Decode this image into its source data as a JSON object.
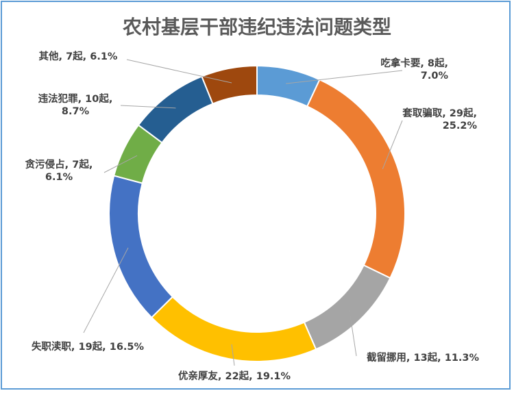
{
  "chart_data": {
    "type": "pie",
    "style": "doughnut",
    "title": "农村基层干部违纪违法问题类型",
    "unit": "起",
    "categories": [
      "吃拿卡要",
      "套取骗取",
      "截留挪用",
      "优亲厚友",
      "失职渎职",
      "贪污侵占",
      "违法犯罪",
      "其他"
    ],
    "values": [
      8,
      29,
      13,
      22,
      19,
      7,
      10,
      7
    ],
    "percents": [
      "7.0%",
      "25.2%",
      "11.3%",
      "19.1%",
      "16.5%",
      "6.1%",
      "8.7%",
      "6.1%"
    ],
    "labels": [
      [
        "吃拿卡要, 8起,",
        "7.0%"
      ],
      [
        "套取骗取, 29起,",
        "25.2%"
      ],
      [
        "截留挪用, 13起, 11.3%"
      ],
      [
        "优亲厚友, 22起, 19.1%"
      ],
      [
        "失职渎职, 19起, 16.5%"
      ],
      [
        "贪污侵占, 7起,",
        "6.1%"
      ],
      [
        "违法犯罪, 10起,",
        "8.7%"
      ],
      [
        "其他, 7起, 6.1%"
      ]
    ],
    "colors": [
      "#5b9bd5",
      "#ed7d31",
      "#a5a5a5",
      "#ffc000",
      "#4472c4",
      "#70ad47",
      "#255e91",
      "#9e480e"
    ]
  }
}
